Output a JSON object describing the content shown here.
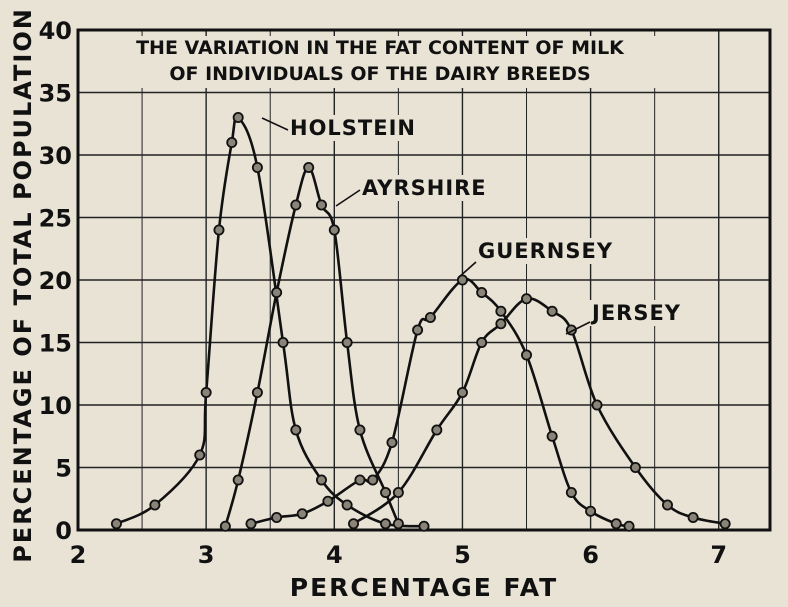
{
  "chart_data": {
    "type": "line",
    "title_lines": [
      "THE VARIATION IN THE FAT CONTENT OF MILK",
      "OF INDIVIDUALS OF THE DAIRY BREEDS"
    ],
    "xlabel": "PERCENTAGE FAT",
    "ylabel": "PERCENTAGE OF TOTAL POPULATION",
    "xlim": [
      2,
      7.4
    ],
    "ylim": [
      0,
      40
    ],
    "x_ticks": [
      2,
      3,
      4,
      5,
      6,
      7
    ],
    "y_ticks": [
      0,
      5,
      10,
      15,
      20,
      25,
      30,
      35,
      40
    ],
    "grid": true,
    "series": [
      {
        "name": "HOLSTEIN",
        "x": [
          2.3,
          2.6,
          2.95,
          3.0,
          3.1,
          3.2,
          3.25,
          3.4,
          3.6,
          3.7,
          3.9,
          4.1,
          4.4,
          4.7
        ],
        "y": [
          0.5,
          2,
          6,
          11,
          24,
          31,
          33,
          29,
          15,
          8,
          4,
          2,
          0.5,
          0.3
        ]
      },
      {
        "name": "AYRSHIRE",
        "x": [
          3.15,
          3.25,
          3.4,
          3.55,
          3.7,
          3.8,
          3.9,
          4.0,
          4.1,
          4.2,
          4.4,
          4.5
        ],
        "y": [
          0.3,
          4,
          11,
          19,
          26,
          29,
          26,
          24,
          15,
          8,
          3,
          0.5
        ]
      },
      {
        "name": "GUERNSEY",
        "x": [
          3.35,
          3.55,
          3.75,
          3.95,
          4.2,
          4.3,
          4.45,
          4.65,
          4.75,
          5.0,
          5.15,
          5.3,
          5.5,
          5.7,
          5.85,
          6.0,
          6.2,
          6.3
        ],
        "y": [
          0.5,
          1,
          1.3,
          2.3,
          4,
          4,
          7,
          16,
          17,
          20,
          19,
          17.5,
          14,
          7.5,
          3,
          1.5,
          0.5,
          0.3
        ]
      },
      {
        "name": "JERSEY",
        "x": [
          4.15,
          4.5,
          4.8,
          5.0,
          5.15,
          5.3,
          5.5,
          5.7,
          5.85,
          6.05,
          6.35,
          6.6,
          6.8,
          7.05
        ],
        "y": [
          0.5,
          3,
          8,
          11,
          15,
          16.5,
          18.5,
          17.5,
          16,
          10,
          5,
          2,
          1,
          0.5
        ]
      }
    ],
    "annotations": [
      "HOLSTEIN",
      "AYRSHIRE",
      "GUERNSEY",
      "JERSEY"
    ]
  }
}
